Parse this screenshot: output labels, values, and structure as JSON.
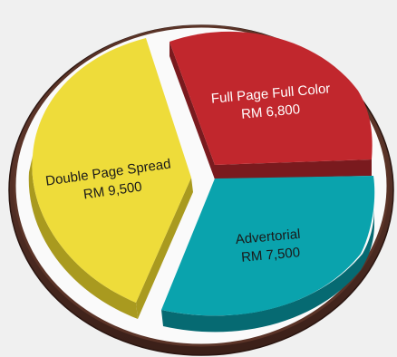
{
  "chart_data": {
    "type": "pie",
    "title": "",
    "slices": [
      {
        "label": "Full Page Full Color",
        "value_text": "RM 6,800",
        "value": 6800,
        "color": "#c1272d",
        "side_color": "#7a1a1e"
      },
      {
        "label": "Advertorial",
        "value_text": "RM 7,500",
        "value": 7500,
        "color": "#0aa3ad",
        "side_color": "#066a72"
      },
      {
        "label": "Double Page Spread",
        "value_text": "RM 9,500",
        "value": 9500,
        "color": "#eedc3a",
        "side_color": "#a99a1f"
      }
    ],
    "ring_color": "#4a2a22",
    "label_color": "#1a1a1a",
    "label_color_on_dark": "#ffffff"
  }
}
